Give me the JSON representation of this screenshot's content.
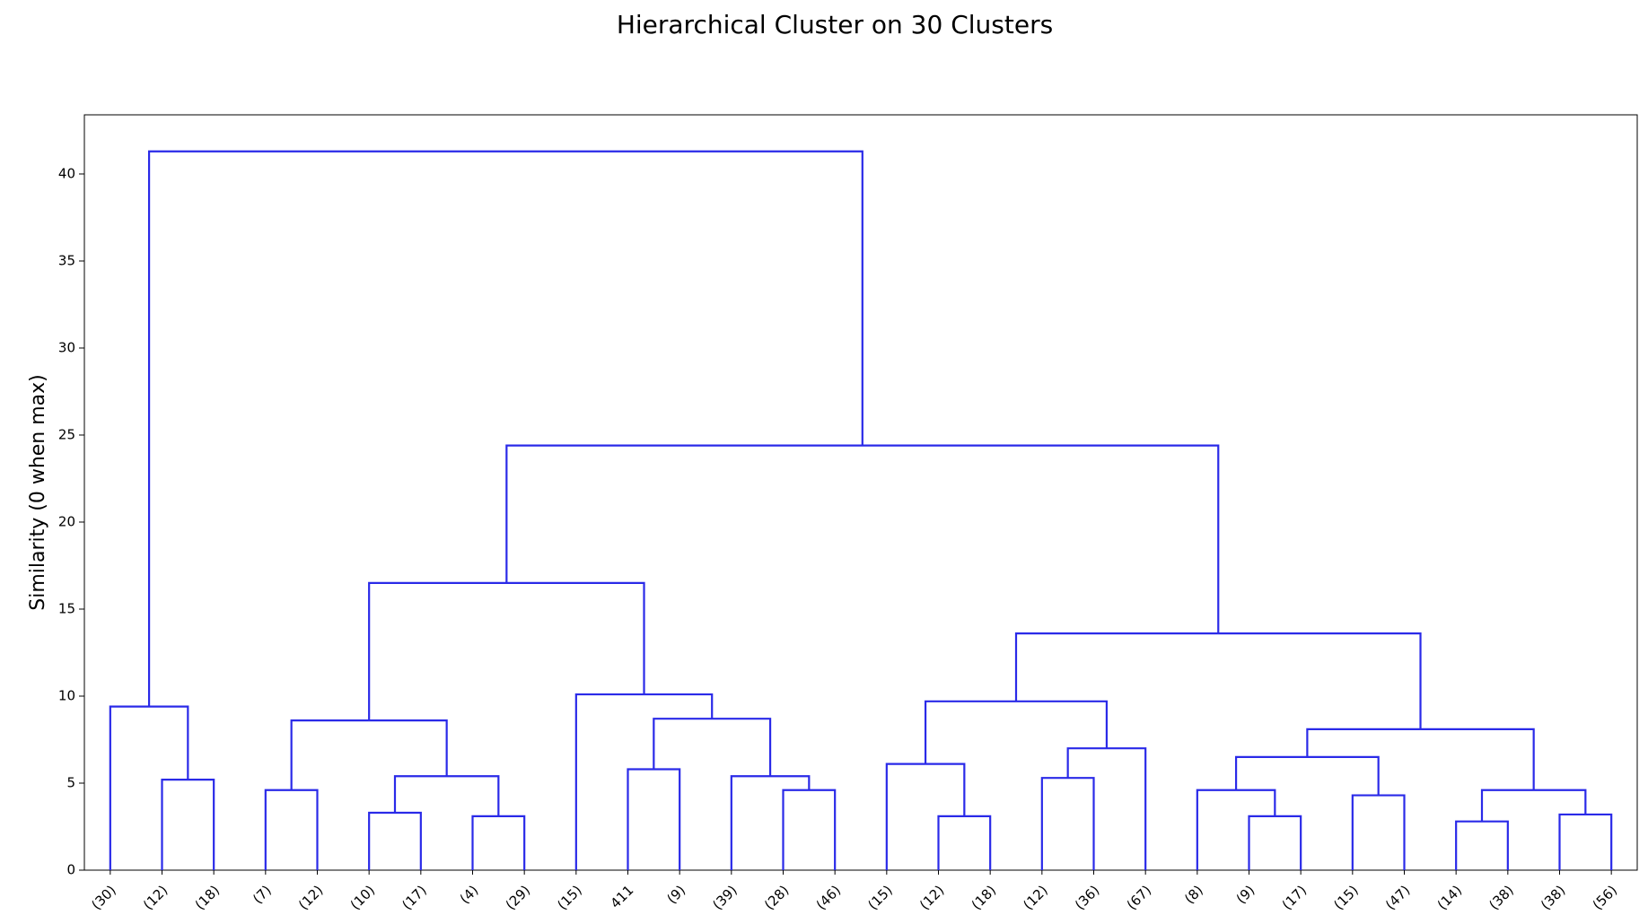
{
  "chart_data": {
    "type": "dendrogram",
    "title": "Hierarchical Cluster on 30 Clusters",
    "y_label": "Similarity (0 when max)",
    "categories": [
      "(30)",
      "(12)",
      "(18)",
      "(7)",
      "(12)",
      "(10)",
      "(17)",
      "(4)",
      "(29)",
      "(15)",
      "411",
      "(9)",
      "(39)",
      "(28)",
      "(46)",
      "(15)",
      "(12)",
      "(18)",
      "(12)",
      "(36)",
      "(67)",
      "(8)",
      "(9)",
      "(17)",
      "(15)",
      "(47)",
      "(14)",
      "(38)",
      "(38)",
      "(56)"
    ],
    "links": [
      [
        1,
        2,
        5.2
      ],
      [
        0,
        30,
        9.4
      ],
      [
        3,
        4,
        4.6
      ],
      [
        5,
        6,
        3.3
      ],
      [
        7,
        8,
        3.1
      ],
      [
        33,
        34,
        5.4
      ],
      [
        32,
        35,
        8.6
      ],
      [
        10,
        11,
        5.8
      ],
      [
        13,
        14,
        4.6
      ],
      [
        12,
        38,
        5.4
      ],
      [
        37,
        39,
        8.7
      ],
      [
        9,
        40,
        10.1
      ],
      [
        36,
        41,
        16.5
      ],
      [
        16,
        17,
        3.1
      ],
      [
        15,
        43,
        6.1
      ],
      [
        18,
        19,
        5.3
      ],
      [
        45,
        20,
        7.0
      ],
      [
        44,
        46,
        9.7
      ],
      [
        22,
        23,
        3.1
      ],
      [
        21,
        48,
        4.6
      ],
      [
        24,
        25,
        4.3
      ],
      [
        49,
        50,
        6.5
      ],
      [
        26,
        27,
        2.8
      ],
      [
        28,
        29,
        3.2
      ],
      [
        52,
        53,
        4.6
      ],
      [
        51,
        54,
        8.1
      ],
      [
        47,
        55,
        13.6
      ],
      [
        42,
        56,
        24.4
      ],
      [
        31,
        57,
        41.3
      ]
    ],
    "color": "#2a2ae8",
    "ylim": [
      0,
      43.4
    ],
    "yticks": [
      0,
      5,
      10,
      15,
      20,
      25,
      30,
      35,
      40
    ]
  }
}
